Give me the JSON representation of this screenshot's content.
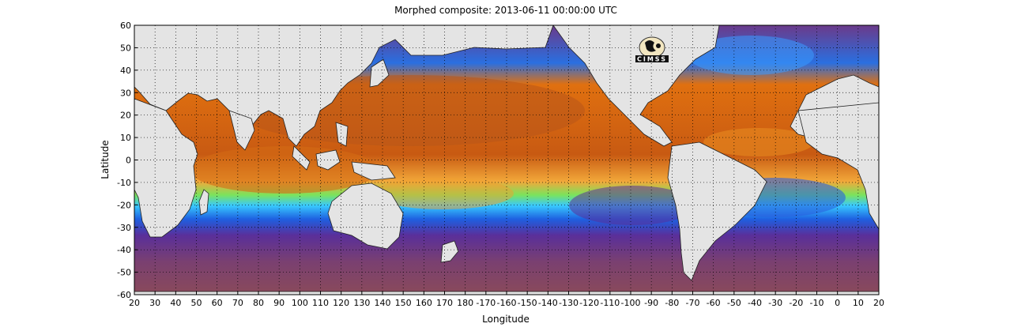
{
  "title": "Morphed composite: 2013-06-11 00:00:00 UTC",
  "xlabel": "Longitude",
  "ylabel": "Latitude",
  "logo": "CIMSS",
  "x_ticks": [
    "20",
    "30",
    "40",
    "50",
    "60",
    "70",
    "80",
    "90",
    "100",
    "110",
    "120",
    "130",
    "140",
    "150",
    "160",
    "170",
    "180",
    "-170",
    "-160",
    "-150",
    "-140",
    "-130",
    "-120",
    "-110",
    "-100",
    "-90",
    "-80",
    "-70",
    "-60",
    "-50",
    "-40",
    "-30",
    "-20",
    "-10",
    "0",
    "10",
    "20"
  ],
  "y_ticks": [
    "60",
    "50",
    "40",
    "30",
    "20",
    "10",
    "0",
    "-10",
    "-20",
    "-30",
    "-40",
    "-50",
    "-60"
  ],
  "colors": {
    "land": "#e4e4e4",
    "dry": "#6b3a8a",
    "low": "#1e6fe0",
    "mid": "#38d0ff",
    "midhigh": "#7be35c",
    "high": "#f0c040",
    "veryhigh": "#e07010",
    "max": "#a85020"
  }
}
